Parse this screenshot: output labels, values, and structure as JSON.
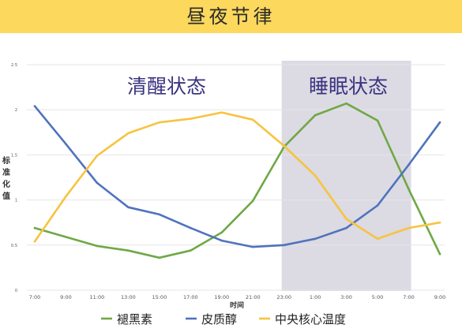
{
  "banner": {
    "title": "昼夜节律",
    "color": "#fcd85c"
  },
  "chart_data": {
    "type": "line",
    "title": "",
    "xlabel": "时间",
    "ylabel": "标准化值",
    "ylim": [
      0,
      2.5
    ],
    "yticks": [
      "0",
      "0.5",
      "1",
      "1.5",
      "2",
      "2.5"
    ],
    "categories": [
      "7:00",
      "9:00",
      "11:00",
      "13:00",
      "15:00",
      "17:00",
      "19:00",
      "21:00",
      "23:00",
      "1:00",
      "3:00",
      "5:00",
      "7:00",
      "9:00"
    ],
    "grid": true,
    "legend_position": "bottom",
    "series": [
      {
        "name": "褪黑素",
        "color": "#70a846",
        "values": [
          0.69,
          0.59,
          0.49,
          0.44,
          0.36,
          0.44,
          0.64,
          0.99,
          1.59,
          1.94,
          2.07,
          1.88,
          1.12,
          0.4
        ]
      },
      {
        "name": "皮质醇",
        "color": "#4f73bd",
        "values": [
          2.04,
          1.62,
          1.19,
          0.92,
          0.84,
          0.69,
          0.55,
          0.48,
          0.5,
          0.57,
          0.69,
          0.94,
          1.39,
          1.86
        ]
      },
      {
        "name": "中央核心温度",
        "color": "#f7c340",
        "values": [
          0.54,
          1.04,
          1.49,
          1.74,
          1.86,
          1.9,
          1.97,
          1.89,
          1.6,
          1.27,
          0.79,
          0.57,
          0.69,
          0.75
        ]
      }
    ],
    "regions": [
      {
        "label": "清醒状态",
        "shaded": false
      },
      {
        "label": "睡眠状态",
        "shaded": true,
        "from": "23:00",
        "to": "7:00"
      }
    ],
    "colors": {
      "region_label": "#3a3480",
      "shade": "#dcdae3",
      "grid": "#e6e6e6",
      "axis_text": "#555555"
    }
  }
}
